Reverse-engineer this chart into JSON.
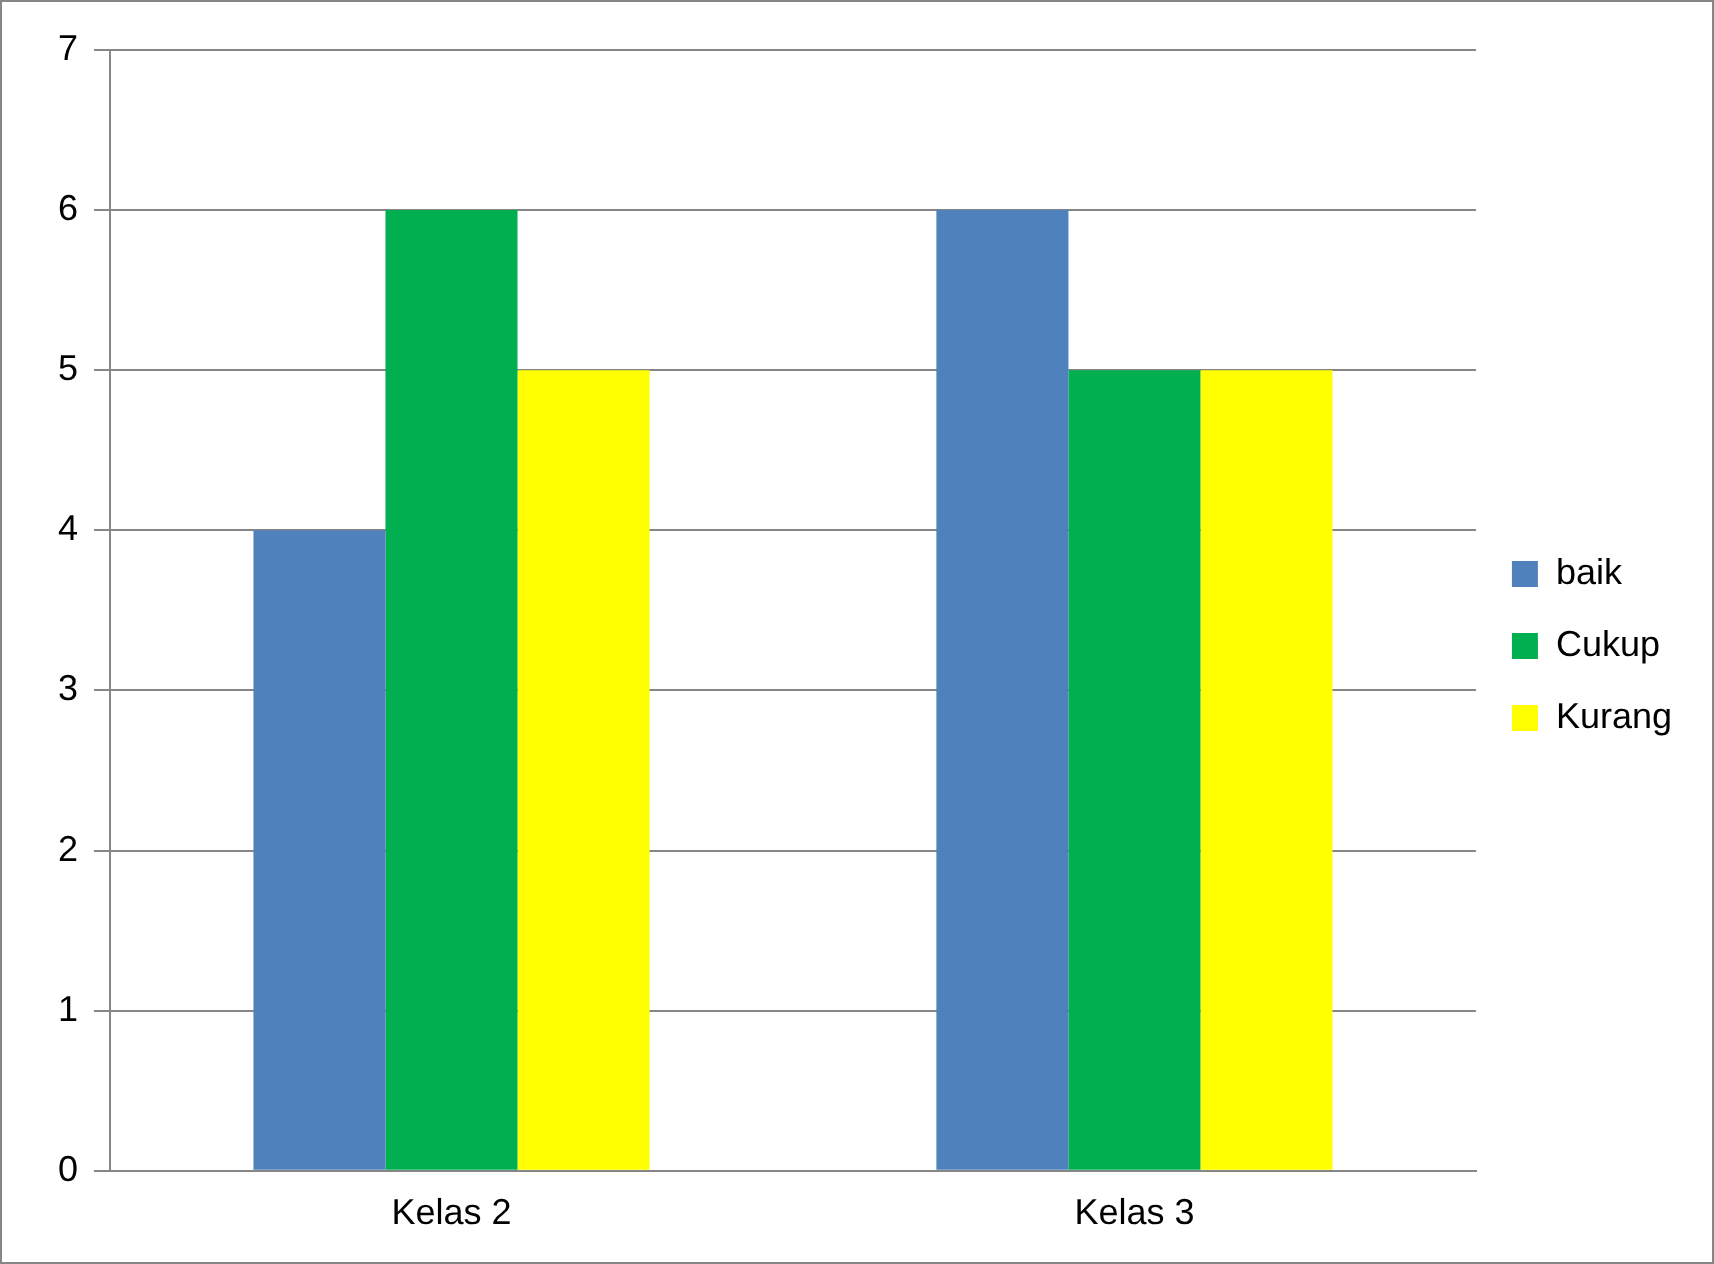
{
  "chart_data": {
    "type": "bar",
    "categories": [
      "Kelas 2",
      "Kelas 3"
    ],
    "series": [
      {
        "name": "baik",
        "color": "#4f81bd",
        "values": [
          4,
          6
        ]
      },
      {
        "name": "Cukup",
        "color": "#00b050",
        "values": [
          6,
          5
        ]
      },
      {
        "name": "Kurang",
        "color": "#ffff00",
        "values": [
          5,
          5
        ]
      }
    ],
    "ylim": [
      0,
      7
    ],
    "yticks": [
      0,
      1,
      2,
      3,
      4,
      5,
      6,
      7
    ],
    "grid": "y",
    "legend": "right"
  }
}
